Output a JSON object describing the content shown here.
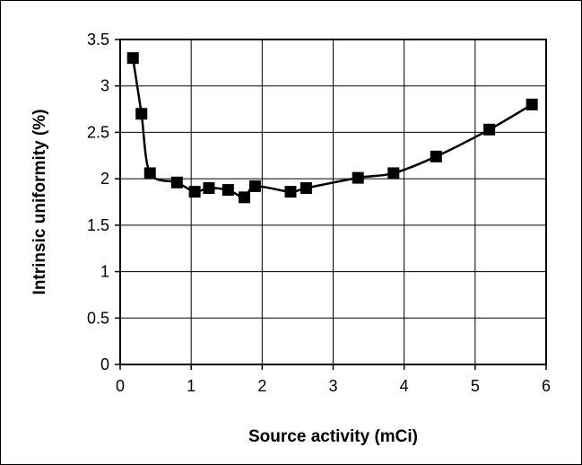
{
  "chart_data": {
    "type": "line",
    "title": "",
    "xlabel": "Source activity (mCi)",
    "ylabel": "Intrinsic uniformity (%)",
    "xlim": [
      0,
      6
    ],
    "ylim": [
      0,
      3.5
    ],
    "x_ticks": [
      "0",
      "1",
      "2",
      "3",
      "4",
      "5",
      "6"
    ],
    "y_ticks": [
      "0",
      "0.5",
      "1",
      "1.5",
      "2",
      "2.5",
      "3",
      "3.5"
    ],
    "grid": true,
    "legend": "none",
    "marker": "square",
    "line_color": "#000000",
    "series": [
      {
        "x": [
          0.18,
          0.3,
          0.42,
          0.8,
          1.05,
          1.25,
          1.52,
          1.75,
          1.9,
          2.4,
          2.62,
          3.35,
          3.85,
          4.45,
          5.2,
          5.8
        ],
        "y": [
          3.3,
          2.7,
          2.06,
          1.96,
          1.86,
          1.9,
          1.88,
          1.8,
          1.92,
          1.86,
          1.9,
          2.01,
          2.06,
          2.24,
          2.53,
          2.8
        ]
      }
    ]
  }
}
